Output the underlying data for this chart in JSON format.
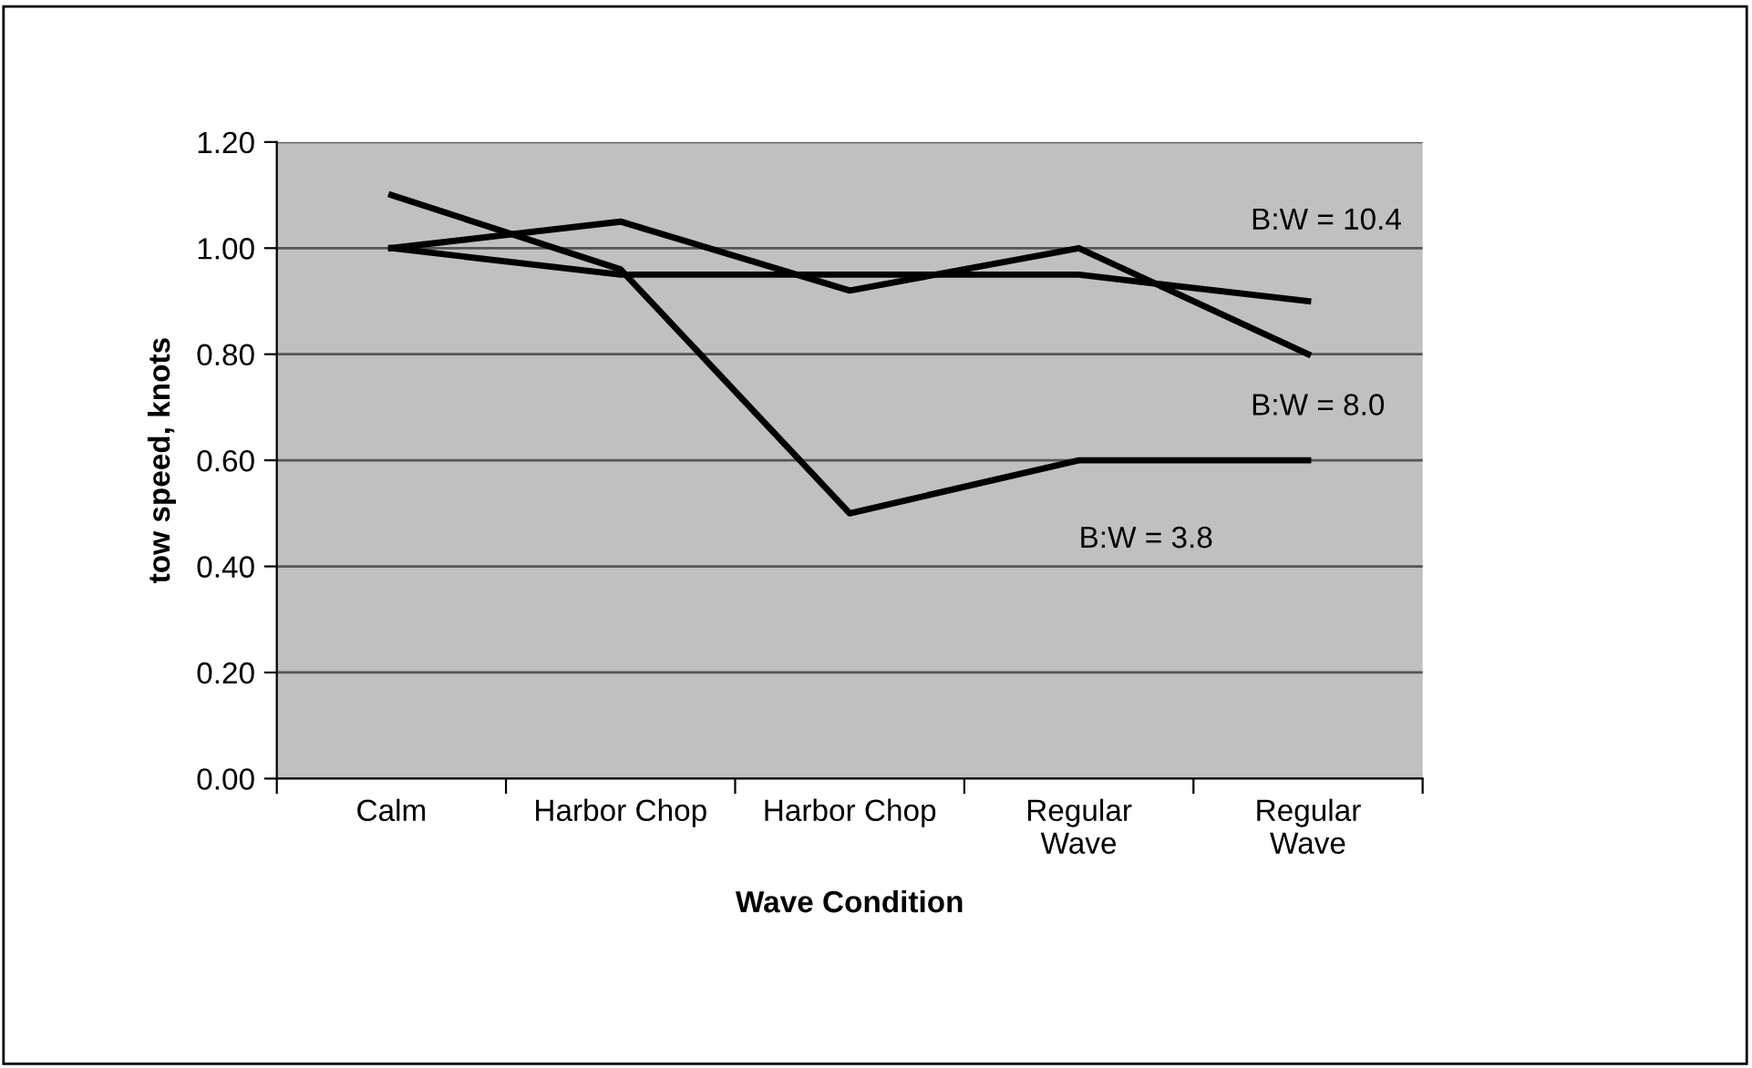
{
  "chart_data": {
    "type": "line",
    "xlabel": "Wave Condition",
    "ylabel": "tow speed, knots",
    "categories": [
      "Calm",
      "Harbor Chop",
      "Harbor Chop",
      "Regular\nWave",
      "Regular\nWave"
    ],
    "series": [
      {
        "name": "B:W = 3.8",
        "color": "#000000",
        "values": [
          1.1,
          0.96,
          0.5,
          0.6,
          0.6
        ]
      },
      {
        "name": "B:W = 8.0",
        "color": "#000000",
        "values": [
          1.0,
          1.05,
          0.92,
          1.0,
          0.8
        ]
      },
      {
        "name": "B:W = 10.4",
        "color": "#000000",
        "values": [
          1.0,
          0.95,
          0.95,
          0.95,
          0.9
        ]
      }
    ],
    "ylim": [
      0,
      1.2
    ],
    "yticks": [
      {
        "value": 0,
        "label": "0.00"
      },
      {
        "value": 0.2,
        "label": "0.20"
      },
      {
        "value": 0.4,
        "label": "0.40"
      },
      {
        "value": 0.6,
        "label": "0.60"
      },
      {
        "value": 0.8,
        "label": "0.80"
      },
      {
        "value": 1.0,
        "label": "1.00"
      },
      {
        "value": 1.2,
        "label": "1.20"
      }
    ],
    "grid": "y",
    "legend": false,
    "marker": "none",
    "line_style": "solid"
  }
}
